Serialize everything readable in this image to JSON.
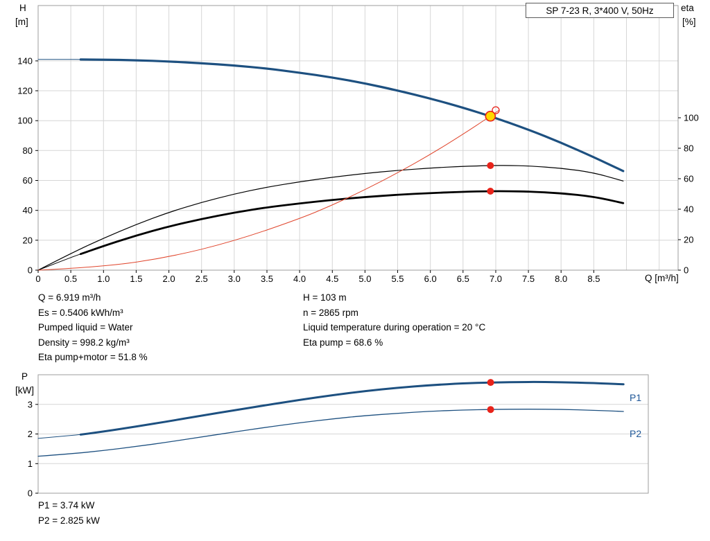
{
  "title_box": {
    "label": "SP 7-23 R, 3*400 V, 50Hz"
  },
  "labels": {
    "h": "H",
    "m_unit": "[m]",
    "eta": "eta",
    "pct_unit": "[%]",
    "q_axis": "Q [m³/h]",
    "p": "P",
    "kw_unit": "[kW]",
    "p1": "P1",
    "p2": "P2"
  },
  "info": {
    "left": [
      "Q = 6.919 m³/h",
      "Es = 0.5406 kWh/m³",
      "Pumped liquid = Water",
      "Density = 998.2 kg/m³",
      "Eta pump+motor = 51.8 %"
    ],
    "right": [
      "H = 103 m",
      "n = 2865 rpm",
      "Liquid temperature during operation = 20 °C",
      "Eta pump = 68.6 %"
    ]
  },
  "power_info": [
    "P1 = 3.74 kW",
    "P2 = 2.825 kW"
  ],
  "colors": {
    "curve_blue": "#1d5080",
    "curve_black": "#000000",
    "curve_red": "#e0452c",
    "marker_red": "#e8231a",
    "duty_yellow": "#ffd800",
    "grid": "#d6d6d6",
    "frame": "#9e9e9e",
    "tick": "#000000",
    "label_blue": "#1d5596"
  },
  "chart_data": [
    {
      "type": "line",
      "name": "pump-head-eta-chart",
      "title": "SP 7-23 R, 3*400 V, 50Hz",
      "xlabel": "Q [m³/h]",
      "ylabel_left": "H [m]",
      "ylabel_right": "eta [%]",
      "xlim": [
        0,
        9.79
      ],
      "ylim_left": [
        0,
        177
      ],
      "ylim_right": [
        0,
        173.6
      ],
      "x_tick_values": [
        0,
        0.5,
        1,
        1.5,
        2,
        2.5,
        3,
        3.5,
        4,
        4.5,
        5,
        5.5,
        6,
        6.5,
        7,
        7.5,
        8,
        8.5
      ],
      "x_tick_labels": [
        "0",
        "0.5",
        "1.0",
        "1.5",
        "2.0",
        "2.5",
        "3.0",
        "3.5",
        "4.0",
        "4.5",
        "5.0",
        "5.5",
        "6.0",
        "6.5",
        "7.0",
        "7.5",
        "8.0",
        "8.5"
      ],
      "x_grid_extra": [
        9,
        9.5
      ],
      "y_ticks_left": [
        0,
        20,
        40,
        60,
        80,
        100,
        120,
        140
      ],
      "y_ticks_right": [
        0,
        20,
        40,
        60,
        80,
        100
      ],
      "series": [
        {
          "name": "pump-head-curve",
          "axis": "left",
          "color": "#1d5080",
          "width": 3.2,
          "thin_until": 0.6,
          "x": [
            0,
            0.5,
            0.65,
            1,
            1.5,
            2,
            2.5,
            3,
            3.5,
            4,
            4.5,
            5,
            5.5,
            6,
            6.5,
            6.919,
            7.5,
            8,
            8.5,
            8.95
          ],
          "y": [
            141,
            141,
            140.9,
            140.8,
            140.4,
            139.6,
            138.4,
            136.9,
            134.9,
            132.1,
            128.9,
            124.9,
            120.2,
            114.8,
            108.7,
            103,
            94,
            85.3,
            75.6,
            66.3
          ]
        },
        {
          "name": "eta-pump-curve",
          "axis": "right",
          "color": "#000000",
          "width": 1.2,
          "x": [
            0,
            0.5,
            1,
            1.5,
            2,
            2.5,
            3,
            3.5,
            4,
            4.5,
            5,
            5.5,
            6,
            6.5,
            6.919,
            7.2,
            7.5,
            8,
            8.5,
            8.95
          ],
          "y": [
            0,
            11,
            21,
            30,
            38,
            44.5,
            50,
            54.5,
            58,
            61,
            63.5,
            65.5,
            67,
            68.1,
            68.6,
            68.7,
            68.4,
            67,
            64,
            58.5
          ]
        },
        {
          "name": "eta-pump-motor-curve",
          "axis": "right",
          "color": "#000000",
          "width": 2.8,
          "thin_until": 0.6,
          "x": [
            0,
            0.5,
            0.65,
            1,
            1.5,
            2,
            2.5,
            3,
            3.5,
            4,
            4.5,
            5,
            5.5,
            6,
            6.5,
            6.919,
            7.2,
            7.5,
            8,
            8.5,
            8.95
          ],
          "y": [
            0,
            8.3,
            10.6,
            15.9,
            22.7,
            28.7,
            33.6,
            37.8,
            41.2,
            43.8,
            46.1,
            48,
            49.5,
            50.6,
            51.4,
            51.8,
            51.8,
            51.6,
            50.5,
            48.2,
            44
          ]
        },
        {
          "name": "system-curve",
          "axis": "left",
          "color": "#e0452c",
          "width": 1,
          "x": [
            0,
            1,
            2,
            3,
            4,
            4.5,
            5,
            5.5,
            6,
            6.5,
            6.919,
            7.05
          ],
          "y": [
            0,
            2.2,
            8.6,
            19.4,
            34.4,
            43.5,
            53.8,
            65.1,
            77.4,
            90.9,
            103,
            107
          ]
        }
      ],
      "markers": [
        {
          "name": "requested-duty-point",
          "style": "open",
          "axis": "left",
          "x": 7.0,
          "y": 107
        },
        {
          "name": "duty-point",
          "style": "duty",
          "axis": "left",
          "x": 6.919,
          "y": 103
        },
        {
          "name": "eta-pump-point",
          "style": "dot",
          "axis": "right",
          "x": 6.919,
          "y": 68.6
        },
        {
          "name": "eta-pump-motor-point",
          "style": "dot",
          "axis": "right",
          "x": 6.919,
          "y": 51.8
        }
      ]
    },
    {
      "type": "line",
      "name": "power-chart",
      "ylabel_left": "P [kW]",
      "xlim": [
        0,
        9.33
      ],
      "ylim_left": [
        0,
        4
      ],
      "y_ticks_left": [
        0,
        1,
        2,
        3
      ],
      "x_tick_values": [],
      "x_tick_labels": [],
      "grid_horizontal_only": true,
      "series": [
        {
          "name": "p1-curve",
          "axis": "left",
          "color": "#1d5080",
          "width": 3,
          "thin_until": 0.6,
          "x": [
            0,
            0.5,
            0.65,
            1,
            1.5,
            2,
            2.5,
            3,
            3.5,
            4,
            4.5,
            5,
            5.5,
            6,
            6.5,
            6.919,
            7.5,
            8,
            8.5,
            8.95
          ],
          "y": [
            1.85,
            1.95,
            1.98,
            2.08,
            2.25,
            2.43,
            2.62,
            2.8,
            2.98,
            3.15,
            3.31,
            3.45,
            3.56,
            3.65,
            3.71,
            3.74,
            3.76,
            3.75,
            3.72,
            3.68
          ]
        },
        {
          "name": "p2-curve",
          "axis": "left",
          "color": "#1d5080",
          "width": 1.3,
          "x": [
            0,
            0.5,
            1,
            1.5,
            2,
            2.5,
            3,
            3.5,
            4,
            4.5,
            5,
            5.5,
            6,
            6.5,
            6.919,
            7.5,
            8,
            8.5,
            8.95
          ],
          "y": [
            1.25,
            1.33,
            1.44,
            1.58,
            1.73,
            1.9,
            2.07,
            2.23,
            2.38,
            2.51,
            2.62,
            2.7,
            2.77,
            2.81,
            2.83,
            2.84,
            2.83,
            2.8,
            2.76
          ]
        }
      ],
      "markers": [
        {
          "name": "p1-duty-point",
          "style": "dot",
          "axis": "left",
          "x": 6.919,
          "y": 3.74
        },
        {
          "name": "p2-duty-point",
          "style": "dot",
          "axis": "left",
          "x": 6.919,
          "y": 2.825
        }
      ]
    }
  ]
}
